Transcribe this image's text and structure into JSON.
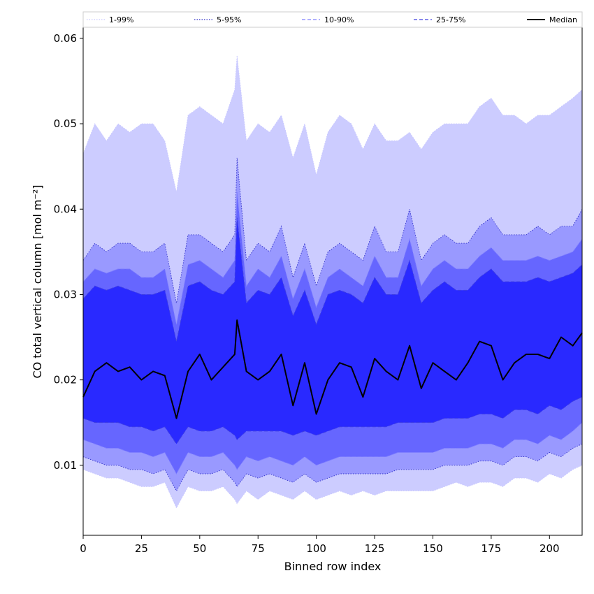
{
  "chart_data": {
    "type": "area",
    "title": "",
    "xlabel": "Binned row index",
    "ylabel": "CO total vertical column [mol m⁻²]",
    "xlim": [
      0,
      214
    ],
    "ylim": [
      0.0018,
      0.0613
    ],
    "x_ticks": [
      0,
      25,
      50,
      75,
      100,
      125,
      150,
      175,
      200
    ],
    "x_tick_labels": [
      "0",
      "25",
      "50",
      "75",
      "100",
      "125",
      "150",
      "175",
      "200"
    ],
    "y_ticks": [
      0.01,
      0.02,
      0.03,
      0.04,
      0.05,
      0.06
    ],
    "y_tick_labels": [
      "0.01",
      "0.02",
      "0.03",
      "0.04",
      "0.05",
      "0.06"
    ],
    "grid": false,
    "legend_position": "top, above plot",
    "legend": [
      {
        "label": "1-99%",
        "style": "dotted",
        "color": "#c8c8ff"
      },
      {
        "label": "5-95%",
        "style": "dotted",
        "color": "#3232c8"
      },
      {
        "label": "10-90%",
        "style": "dashed",
        "color": "#8080ff"
      },
      {
        "label": "25-75%",
        "style": "dashed",
        "color": "#4040e0"
      },
      {
        "label": "Median",
        "style": "solid",
        "color": "#000000"
      }
    ],
    "band_fill_colors": [
      "#ccccff",
      "#9999ff",
      "#6666ff",
      "#2929ff"
    ],
    "x": [
      0,
      5,
      10,
      15,
      20,
      25,
      30,
      35,
      40,
      45,
      50,
      55,
      60,
      65,
      66,
      70,
      75,
      80,
      85,
      90,
      95,
      100,
      105,
      110,
      115,
      120,
      125,
      130,
      135,
      140,
      145,
      150,
      155,
      160,
      165,
      170,
      175,
      180,
      185,
      190,
      195,
      200,
      205,
      210,
      214
    ],
    "series": [
      {
        "name": "1-99%",
        "lower": [
          0.0095,
          0.009,
          0.0085,
          0.0085,
          0.008,
          0.0075,
          0.0075,
          0.008,
          0.005,
          0.0075,
          0.007,
          0.007,
          0.0075,
          0.006,
          0.0055,
          0.007,
          0.006,
          0.007,
          0.0065,
          0.006,
          0.007,
          0.006,
          0.0065,
          0.007,
          0.0065,
          0.007,
          0.0065,
          0.007,
          0.007,
          0.007,
          0.007,
          0.007,
          0.0075,
          0.008,
          0.0075,
          0.008,
          0.008,
          0.0075,
          0.0085,
          0.0085,
          0.008,
          0.009,
          0.0085,
          0.0095,
          0.01
        ],
        "upper": [
          0.0465,
          0.05,
          0.048,
          0.05,
          0.049,
          0.05,
          0.05,
          0.048,
          0.042,
          0.051,
          0.052,
          0.051,
          0.05,
          0.054,
          0.058,
          0.048,
          0.05,
          0.049,
          0.051,
          0.046,
          0.05,
          0.044,
          0.049,
          0.051,
          0.05,
          0.047,
          0.05,
          0.048,
          0.048,
          0.049,
          0.047,
          0.049,
          0.05,
          0.05,
          0.05,
          0.052,
          0.053,
          0.051,
          0.051,
          0.05,
          0.051,
          0.051,
          0.052,
          0.053,
          0.054
        ]
      },
      {
        "name": "5-95%",
        "lower": [
          0.011,
          0.0105,
          0.01,
          0.01,
          0.0095,
          0.0095,
          0.009,
          0.0095,
          0.007,
          0.0095,
          0.009,
          0.009,
          0.0095,
          0.008,
          0.0075,
          0.009,
          0.0085,
          0.009,
          0.0085,
          0.008,
          0.009,
          0.008,
          0.0085,
          0.009,
          0.009,
          0.009,
          0.009,
          0.009,
          0.0095,
          0.0095,
          0.0095,
          0.0095,
          0.01,
          0.01,
          0.01,
          0.0105,
          0.0105,
          0.01,
          0.011,
          0.011,
          0.0105,
          0.0115,
          0.011,
          0.012,
          0.0125
        ],
        "upper": [
          0.034,
          0.036,
          0.035,
          0.036,
          0.036,
          0.035,
          0.035,
          0.036,
          0.029,
          0.037,
          0.037,
          0.036,
          0.035,
          0.037,
          0.046,
          0.034,
          0.036,
          0.035,
          0.038,
          0.032,
          0.036,
          0.031,
          0.035,
          0.036,
          0.035,
          0.034,
          0.038,
          0.035,
          0.035,
          0.04,
          0.034,
          0.036,
          0.037,
          0.036,
          0.036,
          0.038,
          0.039,
          0.037,
          0.037,
          0.037,
          0.038,
          0.037,
          0.038,
          0.038,
          0.04
        ]
      },
      {
        "name": "10-90%",
        "lower": [
          0.013,
          0.0125,
          0.012,
          0.012,
          0.0115,
          0.0115,
          0.011,
          0.0115,
          0.009,
          0.0115,
          0.011,
          0.011,
          0.0115,
          0.01,
          0.0095,
          0.011,
          0.0105,
          0.011,
          0.0105,
          0.01,
          0.011,
          0.01,
          0.0105,
          0.011,
          0.011,
          0.011,
          0.011,
          0.011,
          0.0115,
          0.0115,
          0.0115,
          0.0115,
          0.012,
          0.012,
          0.012,
          0.0125,
          0.0125,
          0.012,
          0.013,
          0.013,
          0.0125,
          0.0135,
          0.013,
          0.014,
          0.015
        ],
        "upper": [
          0.0315,
          0.033,
          0.0325,
          0.033,
          0.033,
          0.032,
          0.032,
          0.033,
          0.0265,
          0.0335,
          0.034,
          0.033,
          0.032,
          0.034,
          0.042,
          0.031,
          0.033,
          0.032,
          0.0345,
          0.0295,
          0.033,
          0.0285,
          0.032,
          0.033,
          0.032,
          0.031,
          0.0345,
          0.032,
          0.032,
          0.0365,
          0.031,
          0.033,
          0.034,
          0.033,
          0.033,
          0.0345,
          0.0355,
          0.034,
          0.034,
          0.034,
          0.0345,
          0.034,
          0.0345,
          0.035,
          0.0365
        ]
      },
      {
        "name": "25-75%",
        "lower": [
          0.0155,
          0.015,
          0.015,
          0.015,
          0.0145,
          0.0145,
          0.014,
          0.0145,
          0.0125,
          0.0145,
          0.014,
          0.014,
          0.0145,
          0.0135,
          0.013,
          0.014,
          0.014,
          0.014,
          0.014,
          0.0135,
          0.014,
          0.0135,
          0.014,
          0.0145,
          0.0145,
          0.0145,
          0.0145,
          0.0145,
          0.015,
          0.015,
          0.015,
          0.015,
          0.0155,
          0.0155,
          0.0155,
          0.016,
          0.016,
          0.0155,
          0.0165,
          0.0165,
          0.016,
          0.017,
          0.0165,
          0.0175,
          0.018
        ],
        "upper": [
          0.0295,
          0.031,
          0.0305,
          0.031,
          0.0305,
          0.03,
          0.03,
          0.0305,
          0.0245,
          0.031,
          0.0315,
          0.0305,
          0.03,
          0.0315,
          0.039,
          0.029,
          0.0305,
          0.03,
          0.032,
          0.0275,
          0.0305,
          0.0265,
          0.03,
          0.0305,
          0.03,
          0.029,
          0.032,
          0.03,
          0.03,
          0.034,
          0.029,
          0.0305,
          0.0315,
          0.0305,
          0.0305,
          0.032,
          0.033,
          0.0315,
          0.0315,
          0.0315,
          0.032,
          0.0315,
          0.032,
          0.0325,
          0.0335
        ]
      },
      {
        "name": "Median",
        "values": [
          0.018,
          0.021,
          0.022,
          0.021,
          0.0215,
          0.02,
          0.021,
          0.0205,
          0.0155,
          0.021,
          0.023,
          0.02,
          0.0215,
          0.023,
          0.027,
          0.021,
          0.02,
          0.021,
          0.023,
          0.017,
          0.022,
          0.016,
          0.02,
          0.022,
          0.0215,
          0.018,
          0.0225,
          0.021,
          0.02,
          0.024,
          0.019,
          0.022,
          0.021,
          0.02,
          0.022,
          0.0245,
          0.024,
          0.02,
          0.022,
          0.023,
          0.023,
          0.0225,
          0.025,
          0.024,
          0.0255
        ]
      }
    ]
  }
}
